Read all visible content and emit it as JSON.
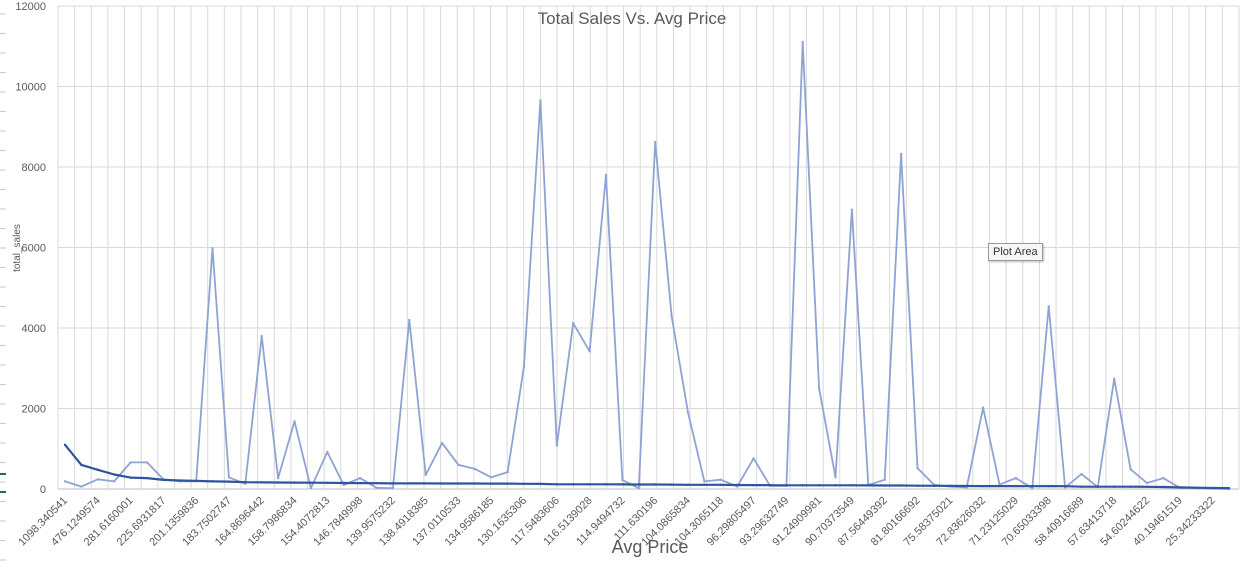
{
  "tooltip": "Plot Area",
  "chart_data": {
    "type": "line",
    "title": "Total Sales Vs. Avg Price",
    "xlabel": "Avg Price",
    "ylabel": "total_sales",
    "ylim": [
      0,
      12000
    ],
    "yticks": [
      0,
      2000,
      4000,
      6000,
      8000,
      10000,
      12000
    ],
    "grid": true,
    "legend": "none",
    "x_tick_labels": [
      "1098.340541",
      "476.1249574",
      "281.6160001",
      "225.6931817",
      "201.1359836",
      "183.7502747",
      "164.8696442",
      "158.7986834",
      "154.4072813",
      "146.7849998",
      "139.9575232",
      "138.4918385",
      "137.0110533",
      "134.9586185",
      "130.1635306",
      "117.5483606",
      "116.5139028",
      "114.9494732",
      "111.630196",
      "104.0865834",
      "104.3065118",
      "96.29805497",
      "93.29632749",
      "91.24909981",
      "90.70373549",
      "87.56449392",
      "81.80166692",
      "75.58375021",
      "72.83626032",
      "71.23125029",
      "70.65033398",
      "58.40916689",
      "57.63413718",
      "54.60244622",
      "40.19461519",
      "25.34233322"
    ],
    "series": [
      {
        "color": "#8fa3d3",
        "values": [
          190,
          60,
          240,
          190,
          660,
          660,
          240,
          190,
          190,
          5980,
          290,
          130,
          3800,
          270,
          1680,
          20,
          920,
          100,
          270,
          30,
          20,
          4200,
          350,
          1140,
          600,
          500,
          290,
          420,
          3050,
          9650,
          1080,
          4120,
          3420,
          7800,
          220,
          20,
          8620,
          4300,
          1900,
          190,
          230,
          60,
          760,
          80,
          80,
          11100,
          2500,
          290,
          6940,
          100,
          230,
          8320,
          520,
          110,
          60,
          40,
          2020,
          110,
          270,
          20,
          4540,
          40,
          370,
          50,
          2740,
          490,
          150,
          270,
          30,
          20,
          10,
          0
        ]
      },
      {
        "color": "#2e55a0",
        "values": [
          1098,
          600,
          476,
          360,
          282,
          270,
          226,
          210,
          201,
          190,
          184,
          170,
          165,
          162,
          159,
          156,
          154,
          150,
          147,
          145,
          140,
          139,
          138,
          137,
          137,
          136,
          135,
          134,
          130,
          126,
          118,
          117,
          117,
          116,
          115,
          113,
          112,
          110,
          104,
          104,
          104,
          100,
          96,
          95,
          93,
          93,
          91,
          91,
          91,
          90,
          88,
          88,
          82,
          80,
          76,
          75,
          73,
          72,
          71,
          70,
          71,
          70,
          58,
          58,
          58,
          57,
          55,
          50,
          40,
          32,
          25,
          22
        ]
      }
    ]
  }
}
